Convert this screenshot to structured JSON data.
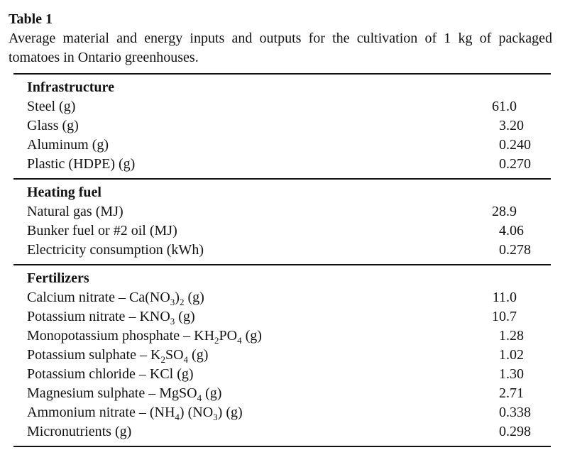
{
  "title": "Table 1",
  "caption": "Average material and energy inputs and outputs for the cultivation of 1 kg of packaged tomatoes in Ontario greenhouses.",
  "table": {
    "sections": [
      {
        "header": "Infrastructure",
        "rows": [
          {
            "label": "Steel (g)",
            "value": "61.0"
          },
          {
            "label": "Glass (g)",
            "value": "3.20"
          },
          {
            "label": "Aluminum (g)",
            "value": "0.240"
          },
          {
            "label": "Plastic (HDPE) (g)",
            "value": "0.270"
          }
        ]
      },
      {
        "header": "Heating fuel",
        "rows": [
          {
            "label": "Natural gas (MJ)",
            "value": "28.9"
          },
          {
            "label": "Bunker fuel or #2 oil (MJ)",
            "value": "4.06"
          },
          {
            "label": "Electricity consumption (kWh)",
            "value": "0.278"
          }
        ]
      },
      {
        "header": "Fertilizers",
        "rows": [
          {
            "label": "Calcium nitrate – Ca(NO₃)₂ (g)",
            "value": "11.0"
          },
          {
            "label": "Potassium nitrate – KNO₃ (g)",
            "value": "10.7"
          },
          {
            "label": "Monopotassium phosphate – KH₂PO₄ (g)",
            "value": "1.28"
          },
          {
            "label": "Potassium sulphate – K₂SO₄ (g)",
            "value": "1.02"
          },
          {
            "label": "Potassium chloride – KCl (g)",
            "value": "1.30"
          },
          {
            "label": "Magnesium sulphate – MgSO₄ (g)",
            "value": "2.71"
          },
          {
            "label": "Ammonium nitrate – (NH₄) (NO₃) (g)",
            "value": "0.338"
          },
          {
            "label": "Micronutrients (g)",
            "value": "0.298"
          }
        ]
      }
    ]
  },
  "colors": {
    "text": "#121212",
    "rule": "#121212",
    "background": "#ffffff"
  }
}
